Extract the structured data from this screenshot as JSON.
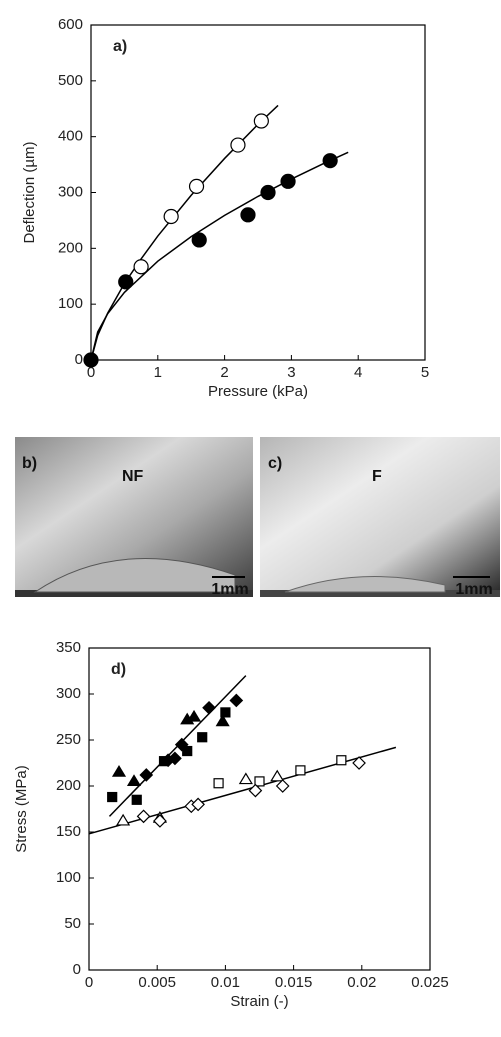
{
  "chart_data": [
    {
      "type": "scatter",
      "label": "a)",
      "x_label": "Pressure (kPa)",
      "y_label": "Deflection (µm)",
      "xlim": [
        0,
        5
      ],
      "ylim": [
        0,
        600
      ],
      "xticks": [
        0,
        1,
        2,
        3,
        4,
        5
      ],
      "yticks": [
        0,
        100,
        200,
        300,
        400,
        500,
        600
      ],
      "series": [
        {
          "marker": "line",
          "color": "#000",
          "x": [
            0,
            0.1,
            0.25,
            0.5,
            0.75,
            1,
            1.5,
            2,
            2.5,
            2.8
          ],
          "values": [
            0,
            44,
            84,
            137,
            181,
            222,
            295,
            361,
            422,
            456
          ]
        },
        {
          "marker": "line",
          "color": "#000",
          "x": [
            0,
            0.1,
            0.25,
            0.5,
            1,
            1.5,
            2,
            2.5,
            3,
            3.5,
            3.85
          ],
          "values": [
            0,
            50,
            83,
            121,
            177,
            221,
            259,
            293,
            324,
            353,
            372
          ]
        },
        {
          "marker": "circle",
          "color": "#000",
          "fill": "#fff",
          "x": [
            0.75,
            1.2,
            1.58,
            2.2,
            2.55
          ],
          "values": [
            167,
            257,
            311,
            385,
            428
          ]
        },
        {
          "marker": "circle",
          "color": "#000",
          "fill": "#000",
          "x": [
            0,
            0.52,
            1.62,
            2.35,
            2.65,
            2.95,
            3.58
          ],
          "values": [
            0,
            140,
            215,
            260,
            300,
            320,
            357
          ]
        }
      ]
    },
    {
      "type": "scatter",
      "label": "d)",
      "x_label": "Strain (-)",
      "y_label": "Stress (MPa)",
      "xlim": [
        0,
        0.025
      ],
      "ylim": [
        0,
        350
      ],
      "xticks": [
        0,
        0.005,
        0.01,
        0.015,
        0.02,
        0.025
      ],
      "yticks": [
        0,
        50,
        100,
        150,
        200,
        250,
        300,
        350
      ],
      "series": [
        {
          "marker": "line",
          "color": "#000",
          "x": [
            0.0015,
            0.0115
          ],
          "values": [
            167,
            320
          ]
        },
        {
          "marker": "line",
          "color": "#000",
          "x": [
            0,
            0.0225
          ],
          "values": [
            148,
            242
          ]
        },
        {
          "marker": "triangle",
          "color": "#000",
          "fill": "#000",
          "x": [
            0.0022,
            0.0033,
            0.0072,
            0.0077,
            0.0098
          ],
          "values": [
            215,
            205,
            272,
            275,
            270
          ]
        },
        {
          "marker": "square",
          "color": "#000",
          "fill": "#000",
          "x": [
            0.0017,
            0.0035,
            0.0055,
            0.0072,
            0.0083,
            0.01
          ],
          "values": [
            188,
            185,
            227,
            238,
            253,
            280
          ]
        },
        {
          "marker": "diamond",
          "color": "#000",
          "fill": "#000",
          "x": [
            0.0042,
            0.0058,
            0.0063,
            0.0068,
            0.0088,
            0.0108
          ],
          "values": [
            212,
            228,
            230,
            245,
            285,
            293
          ]
        },
        {
          "marker": "square",
          "color": "#000",
          "fill": "#fff",
          "x": [
            0.0095,
            0.0125,
            0.0155,
            0.0185
          ],
          "values": [
            203,
            205,
            217,
            228
          ]
        },
        {
          "marker": "triangle",
          "color": "#000",
          "fill": "#fff",
          "x": [
            0.0025,
            0.0052,
            0.0115,
            0.0138
          ],
          "values": [
            162,
            165,
            207,
            210
          ]
        },
        {
          "marker": "diamond",
          "color": "#000",
          "fill": "#fff",
          "x": [
            0.004,
            0.0052,
            0.0075,
            0.008,
            0.0122,
            0.0142,
            0.0198
          ],
          "values": [
            167,
            162,
            178,
            180,
            195,
            200,
            225
          ]
        }
      ]
    }
  ],
  "photos": [
    {
      "label": "b)",
      "text": "NF",
      "scale": "1mm"
    },
    {
      "label": "c)",
      "text": "F",
      "scale": "1mm"
    }
  ]
}
